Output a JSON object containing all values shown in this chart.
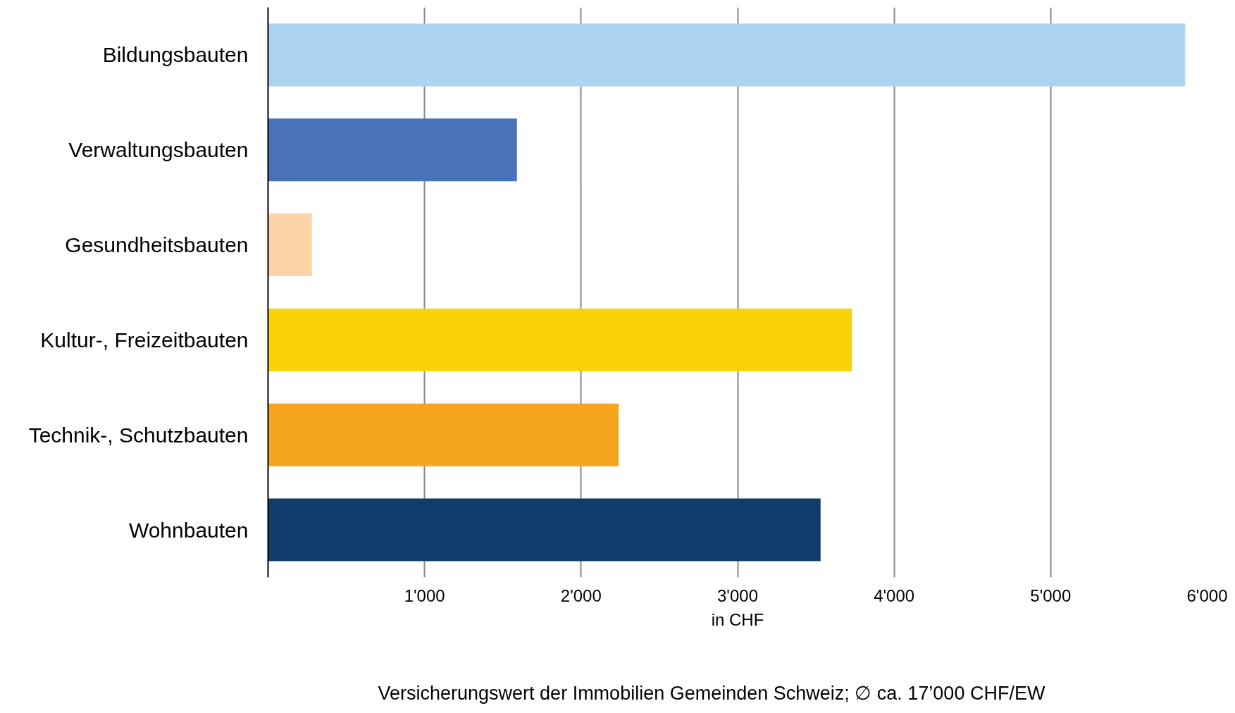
{
  "chart_data": {
    "type": "bar",
    "orientation": "horizontal",
    "xlabel": "in CHF",
    "categories": [
      "Bildungsbauten",
      "Verwaltungsbauten",
      "Gesundheitsbauten",
      "Kultur-, Freizeitbauten",
      "Technik-, Schutzbauten",
      "Wohnbauten"
    ],
    "values": [
      5860,
      1590,
      280,
      3730,
      2240,
      3530
    ],
    "colors": [
      "#acd4f0",
      "#4a72b8",
      "#fdd3a8",
      "#fad20a",
      "#f6a61e",
      "#0f3c6a"
    ],
    "xlim": [
      0,
      6000
    ],
    "xticks": [
      {
        "value": 1000,
        "label": "1'000"
      },
      {
        "value": 2000,
        "label": "2'000"
      },
      {
        "value": 3000,
        "label": "3'000"
      },
      {
        "value": 4000,
        "label": "4'000"
      },
      {
        "value": 5000,
        "label": "5'000"
      },
      {
        "value": 6000,
        "label": "6'000"
      }
    ],
    "grid": "x",
    "annotations": [
      "Versicherungswert der Immobilien Gemeinden Schweiz; ∅ ca. 17’000 CHF/EW"
    ]
  }
}
